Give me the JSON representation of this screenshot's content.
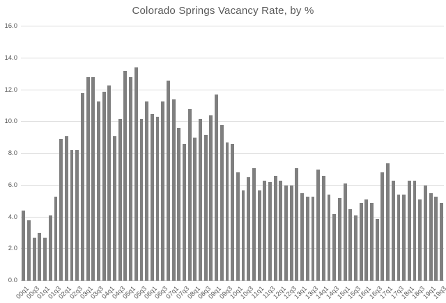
{
  "chart_data": {
    "type": "bar",
    "title": "Colorado Springs Vacancy Rate, by %",
    "categories": [
      "00q1",
      "00q2",
      "00q3",
      "00q4",
      "01q1",
      "01q2",
      "01q3",
      "01q4",
      "02q1",
      "02q2",
      "02q3",
      "02q4",
      "03q1",
      "03q2",
      "03q3",
      "03q4",
      "04q1",
      "04q2",
      "04q3",
      "04q4",
      "05q1",
      "05q2",
      "05q3",
      "05q4",
      "06q1",
      "06q2",
      "06q3",
      "06q4",
      "07q1",
      "07q2",
      "07q3",
      "07q4",
      "08q1",
      "08q2",
      "08q3",
      "08q4",
      "09q1",
      "09q2",
      "09q3",
      "09q4",
      "10q1",
      "10q2",
      "10q3",
      "10q4",
      "11q1",
      "11q2",
      "11q3",
      "11q4",
      "12q1",
      "12q2",
      "12q3",
      "12q4",
      "13q1",
      "13q2",
      "13q3",
      "13q4",
      "14q1",
      "14q2",
      "14q3",
      "14q4",
      "15q1",
      "15q2",
      "15q3",
      "15q4",
      "16q1",
      "16q2",
      "16q3",
      "16q4",
      "17q1",
      "17q2",
      "17q3",
      "17q4",
      "18q1",
      "18q2",
      "18q3",
      "18q4",
      "19q1",
      "19q2",
      "19q3"
    ],
    "values": [
      4.4,
      3.8,
      2.7,
      3.0,
      2.7,
      4.1,
      5.3,
      8.9,
      9.1,
      8.2,
      8.2,
      11.8,
      12.8,
      12.8,
      11.3,
      11.9,
      12.3,
      9.1,
      10.2,
      13.2,
      12.8,
      13.4,
      10.2,
      11.3,
      10.5,
      10.3,
      11.3,
      12.6,
      11.4,
      9.6,
      8.6,
      10.8,
      9.0,
      10.2,
      9.2,
      10.4,
      11.7,
      9.8,
      8.7,
      8.6,
      6.8,
      5.7,
      6.5,
      7.1,
      5.7,
      6.3,
      6.2,
      6.6,
      6.3,
      6.0,
      6.0,
      7.1,
      5.5,
      5.3,
      5.3,
      7.0,
      6.6,
      5.4,
      4.2,
      5.2,
      6.1,
      4.5,
      4.1,
      4.9,
      5.1,
      4.9,
      3.9,
      6.8,
      7.4,
      6.3,
      5.4,
      5.4,
      6.3,
      6.3,
      5.1,
      6.0,
      5.5,
      5.3,
      4.9
    ],
    "xtick_labels_shown": [
      "00q1",
      "00q3",
      "01q1",
      "01q3",
      "02q1",
      "02q3",
      "03q1",
      "03q3",
      "04q1",
      "04q3",
      "05q1",
      "05q3",
      "06q1",
      "06q3",
      "07q1",
      "07q3",
      "08q1",
      "08q3",
      "09q1",
      "09q3",
      "10q1",
      "10q3",
      "11q1",
      "11q3",
      "12q1",
      "12q3",
      "13q1",
      "13q3",
      "14q1",
      "14q3",
      "15q1",
      "15q3",
      "16q1",
      "16q3",
      "17q1",
      "17q3",
      "18q1",
      "18q3",
      "19q1",
      "19q3"
    ],
    "xtick_shown_every": 2,
    "yticks": [
      0,
      2,
      4,
      6,
      8,
      10,
      12,
      14,
      16
    ],
    "ytick_labels": [
      "0.0",
      "2.0",
      "4.0",
      "6.0",
      "8.0",
      "10.0",
      "12.0",
      "14.0",
      "16.0"
    ],
    "ylim": [
      0,
      16
    ],
    "xlabel": "",
    "ylabel": "",
    "grid": "horizontal",
    "legend": "none",
    "colors": {
      "bar": "#7f7f7f",
      "gridline": "#d9d9d9",
      "tick_label": "#595959",
      "title": "#595959",
      "background": "#ffffff"
    }
  }
}
